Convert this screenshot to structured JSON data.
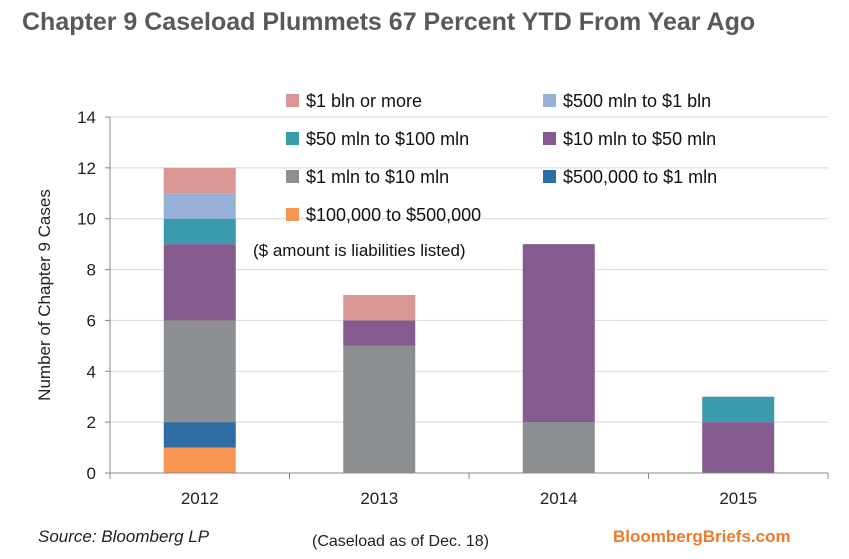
{
  "title": "Chapter 9 Caseload Plummets 67 Percent YTD From Year Ago",
  "source": "Source: Bloomberg LP",
  "note": "(Caseload as of Dec. 18)",
  "brand": "BloombergBriefs.com",
  "chart_data": {
    "type": "bar",
    "stacked": true,
    "categories": [
      "2012",
      "2013",
      "2014",
      "2015"
    ],
    "ylabel": "Number of Chapter 9 Cases",
    "xlabel": "",
    "ylim": [
      0,
      14
    ],
    "yticks": [
      0,
      2,
      4,
      6,
      8,
      10,
      12,
      14
    ],
    "grid": true,
    "legend_position": "top-center",
    "annotation": "($ amount is liabilities listed)",
    "series": [
      {
        "name": "$100,000 to $500,000",
        "color": "#f79552",
        "values": [
          1,
          0,
          0,
          0
        ]
      },
      {
        "name": "$500,000 to $1 mln",
        "color": "#2e6da4",
        "values": [
          1,
          0,
          0,
          0
        ]
      },
      {
        "name": "$1 mln to $10 mln",
        "color": "#8c8f91",
        "values": [
          4,
          5,
          2,
          0
        ]
      },
      {
        "name": "$10 mln to $50 mln",
        "color": "#855a8f",
        "values": [
          3,
          1,
          7,
          2
        ]
      },
      {
        "name": "$50 mln to $100 mln",
        "color": "#3b9aab",
        "values": [
          1,
          0,
          0,
          1
        ]
      },
      {
        "name": "$500 mln to $1 bln",
        "color": "#98b0d8",
        "values": [
          1,
          0,
          0,
          0
        ]
      },
      {
        "name": "$1 bln or more",
        "color": "#d99695",
        "values": [
          1,
          1,
          0,
          0
        ]
      }
    ],
    "legend_order": [
      "$1 bln or more",
      "$500 mln to $1 bln",
      "$50 mln to $100 mln",
      "$10 mln to $50 mln",
      "$1 mln to $10 mln",
      "$500,000 to $1 mln",
      "$100,000 to $500,000"
    ]
  }
}
